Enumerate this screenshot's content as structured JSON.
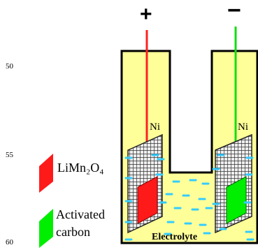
{
  "line_numbers": [
    "50",
    "55",
    "60"
  ],
  "terminals": {
    "positive": "+",
    "negative": "−"
  },
  "labels": {
    "ni_left": "Ni",
    "ni_right": "Ni",
    "electrolyte": "Electrolyte"
  },
  "legend": {
    "cathode": {
      "text": "LiMn₂O₄",
      "color": "#ff1a1a"
    },
    "anode": {
      "line1": "Activated",
      "line2": "carbon",
      "color": "#00ee00"
    }
  },
  "colors": {
    "cell_fill": "#ffff99",
    "cell_stroke": "#000000",
    "positive_wire": "#ff2020",
    "negative_wire": "#11dd11",
    "ion": "#33ccff",
    "grid": "#333333"
  }
}
